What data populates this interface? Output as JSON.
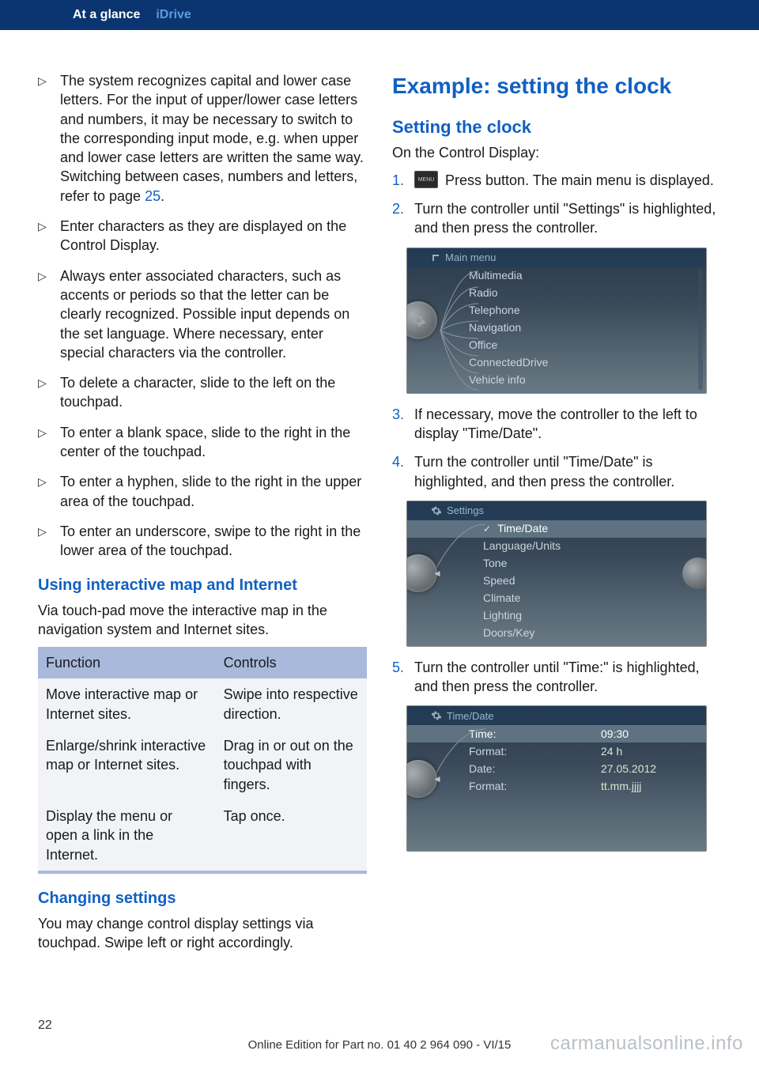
{
  "header": {
    "section": "At a glance",
    "subsection": "iDrive"
  },
  "left": {
    "bullets": [
      {
        "pre": "The system recognizes capital and lower case letters. For the input of upper/lower case letters and numbers, it may be neces­sary to switch to the corresponding input mode, e.g. when upper and lower case let­ters are written the same way. Switching between cases, numbers and letters, refer to page ",
        "link": "25",
        "post": "."
      },
      {
        "pre": "Enter characters as they are displayed on the Control Display."
      },
      {
        "pre": "Always enter associated characters, such as accents or periods so that the letter can be clearly recognized. Possible input de­pends on the set language. Where neces­sary, enter special characters via the con­troller."
      },
      {
        "pre": "To delete a character, slide to the left on the touchpad."
      },
      {
        "pre": "To enter a blank space, slide to the right in the center of the touchpad."
      },
      {
        "pre": "To enter a hyphen, slide to the right in the upper area of the touchpad."
      },
      {
        "pre": "To enter an underscore, swipe to the right in the lower area of the touchpad."
      }
    ],
    "h_map": "Using interactive map and Internet",
    "p_map": "Via touch-pad move the interactive map in the navigation system and Internet sites.",
    "table": {
      "h1": "Function",
      "h2": "Controls",
      "rows": [
        [
          "Move interactive map or Internet sites.",
          "Swipe into re­spective direc­tion."
        ],
        [
          "Enlarge/shrink interactive map or Internet sites.",
          "Drag in or out on the touchpad with fingers."
        ],
        [
          "Display the menu or open a link in the Internet.",
          "Tap once."
        ]
      ]
    },
    "h_change": "Changing settings",
    "p_change": "You may change control display settings via touchpad. Swipe left or right accordingly."
  },
  "right": {
    "title": "Example: setting the clock",
    "h_setting": "Setting the clock",
    "p_on": "On the Control Display:",
    "steps": [
      {
        "n": "1.",
        "menu_btn": "MENU",
        "text": " Press button. The main menu is dis­played."
      },
      {
        "n": "2.",
        "text": "Turn the controller until \"Settings\" is high­lighted, and then press the controller."
      },
      {
        "n": "3.",
        "text": "If necessary, move the controller to the left to display \"Time/Date\"."
      },
      {
        "n": "4.",
        "text": "Turn the controller until \"Time/Date\" is highlighted, and then press the controller."
      },
      {
        "n": "5.",
        "text": "Turn the controller until \"Time:\" is high­lighted, and then press the controller."
      }
    ],
    "screen1": {
      "title": "Main menu",
      "items": [
        "Multimedia",
        "Radio",
        "Telephone",
        "Navigation",
        "Office",
        "ConnectedDrive",
        "Vehicle info"
      ],
      "selected": "Settings"
    },
    "screen2": {
      "title": "Settings",
      "selected": "Time/Date",
      "items": [
        "Language/Units",
        "Tone",
        "Speed",
        "Climate",
        "Lighting",
        "Doors/Key"
      ]
    },
    "screen3": {
      "title": "Time/Date",
      "rows": [
        {
          "label": "Time:",
          "val": "09:30",
          "selected": true
        },
        {
          "label": "Format:",
          "val": "24 h"
        },
        {
          "label": "Date:",
          "val": "27.05.2012"
        },
        {
          "label": "Format:",
          "val": "tt.mm.jjjj"
        }
      ]
    }
  },
  "footer": {
    "page": "22",
    "online": "Online Edition for Part no. 01 40 2 964 090 - VI/15",
    "watermark": "carmanualsonline.info"
  }
}
